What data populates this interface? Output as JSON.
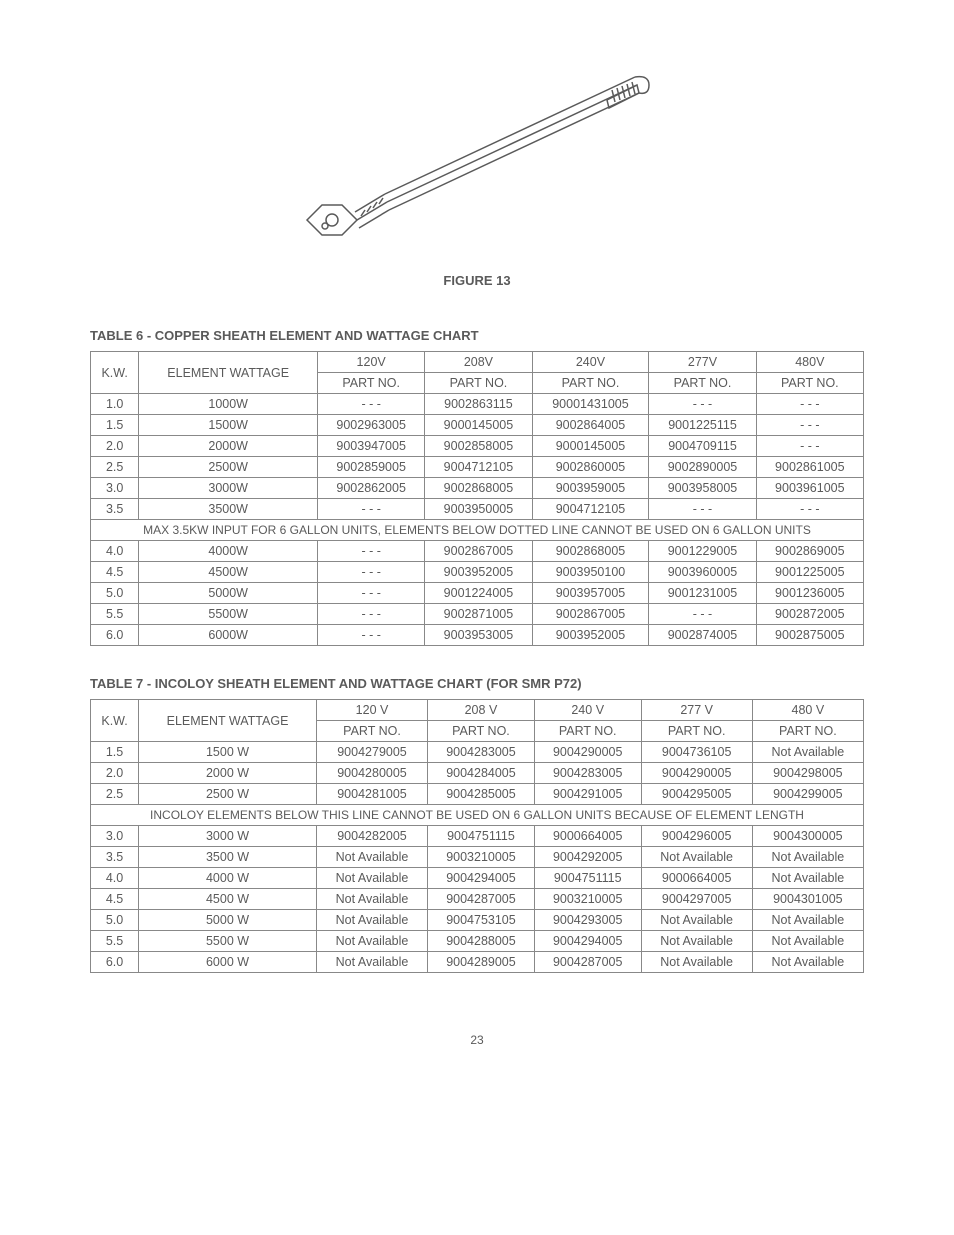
{
  "figure": {
    "caption": "FIGURE 13"
  },
  "table6": {
    "title": "TABLE 6 - COPPER SHEATH ELEMENT AND WATTAGE CHART",
    "header": {
      "kw": "K.W.",
      "wattage": "ELEMENT WATTAGE",
      "voltages": [
        "120V",
        "208V",
        "240V",
        "277V",
        "480V"
      ],
      "partno": "PART NO."
    },
    "note": "MAX 3.5KW INPUT FOR 6 GALLON UNITS, ELEMENTS BELOW DOTTED LINE CANNOT BE USED ON 6 GALLON UNITS",
    "rows_top": [
      {
        "kw": "1.0",
        "w": "1000W",
        "c": [
          "- - -",
          "9002863115",
          "90001431005",
          "- - -",
          "- - -"
        ]
      },
      {
        "kw": "1.5",
        "w": "1500W",
        "c": [
          "9002963005",
          "9000145005",
          "9002864005",
          "9001225115",
          "- - -"
        ]
      },
      {
        "kw": "2.0",
        "w": "2000W",
        "c": [
          "9003947005",
          "9002858005",
          "9000145005",
          "9004709115",
          "- - -"
        ]
      },
      {
        "kw": "2.5",
        "w": "2500W",
        "c": [
          "9002859005",
          "9004712105",
          "9002860005",
          "9002890005",
          "9002861005"
        ]
      },
      {
        "kw": "3.0",
        "w": "3000W",
        "c": [
          "9002862005",
          "9002868005",
          "9003959005",
          "9003958005",
          "9003961005"
        ]
      },
      {
        "kw": "3.5",
        "w": "3500W",
        "c": [
          "- - -",
          "9003950005",
          "9004712105",
          "- - -",
          "- - -"
        ]
      }
    ],
    "rows_bottom": [
      {
        "kw": "4.0",
        "w": "4000W",
        "c": [
          "- - -",
          "9002867005",
          "9002868005",
          "9001229005",
          "9002869005"
        ]
      },
      {
        "kw": "4.5",
        "w": "4500W",
        "c": [
          "- - -",
          "9003952005",
          "9003950100",
          "9003960005",
          "9001225005"
        ]
      },
      {
        "kw": "5.0",
        "w": "5000W",
        "c": [
          "- - -",
          "9001224005",
          "9003957005",
          "9001231005",
          "9001236005"
        ]
      },
      {
        "kw": "5.5",
        "w": "5500W",
        "c": [
          "- - -",
          "9002871005",
          "9002867005",
          "- - -",
          "9002872005"
        ]
      },
      {
        "kw": "6.0",
        "w": "6000W",
        "c": [
          "- - -",
          "9003953005",
          "9003952005",
          "9002874005",
          "9002875005"
        ]
      }
    ]
  },
  "table7": {
    "title": "TABLE 7 - INCOLOY SHEATH ELEMENT AND WATTAGE CHART (FOR SMR P72)",
    "header": {
      "kw": "K.W.",
      "wattage": "ELEMENT WATTAGE",
      "voltages": [
        "120 V",
        "208 V",
        "240 V",
        "277 V",
        "480 V"
      ],
      "partno": "PART NO."
    },
    "note": "INCOLOY ELEMENTS BELOW THIS LINE CANNOT BE USED ON 6 GALLON UNITS BECAUSE OF ELEMENT LENGTH",
    "rows_top": [
      {
        "kw": "1.5",
        "w": "1500 W",
        "c": [
          "9004279005",
          "9004283005",
          "9004290005",
          "9004736105",
          "Not Available"
        ]
      },
      {
        "kw": "2.0",
        "w": "2000 W",
        "c": [
          "9004280005",
          "9004284005",
          "9004283005",
          "9004290005",
          "9004298005"
        ]
      },
      {
        "kw": "2.5",
        "w": "2500 W",
        "c": [
          "9004281005",
          "9004285005",
          "9004291005",
          "9004295005",
          "9004299005"
        ]
      }
    ],
    "rows_bottom": [
      {
        "kw": "3.0",
        "w": "3000 W",
        "c": [
          "9004282005",
          "9004751115",
          "9000664005",
          "9004296005",
          "9004300005"
        ]
      },
      {
        "kw": "3.5",
        "w": "3500 W",
        "c": [
          "Not Available",
          "9003210005",
          "9004292005",
          "Not Available",
          "Not Available"
        ]
      },
      {
        "kw": "4.0",
        "w": "4000 W",
        "c": [
          "Not Available",
          "9004294005",
          "9004751115",
          "9000664005",
          "Not Available"
        ]
      },
      {
        "kw": "4.5",
        "w": "4500 W",
        "c": [
          "Not Available",
          "9004287005",
          "9003210005",
          "9004297005",
          "9004301005"
        ]
      },
      {
        "kw": "5.0",
        "w": "5000 W",
        "c": [
          "Not Available",
          "9004753105",
          "9004293005",
          "Not Available",
          "Not Available"
        ]
      },
      {
        "kw": "5.5",
        "w": "5500 W",
        "c": [
          "Not Available",
          "9004288005",
          "9004294005",
          "Not Available",
          "Not Available"
        ]
      },
      {
        "kw": "6.0",
        "w": "6000 W",
        "c": [
          "Not Available",
          "9004289005",
          "9004287005",
          "Not Available",
          "Not Available"
        ]
      }
    ]
  },
  "page_number": "23"
}
